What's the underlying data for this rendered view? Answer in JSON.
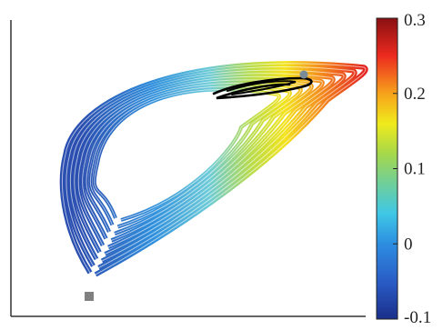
{
  "chart_data": {
    "type": "line",
    "title": "",
    "xlabel": "",
    "ylabel": "",
    "colorbar": {
      "min": -0.1,
      "max": 0.3,
      "colormap": "jet",
      "ticks": [
        {
          "value": 0.3,
          "label": "0.3"
        },
        {
          "value": 0.2,
          "label": "0.2"
        },
        {
          "value": 0.1,
          "label": "0.1"
        },
        {
          "value": 0.0,
          "label": "0"
        },
        {
          "value": -0.1,
          "label": "-0.1"
        }
      ]
    },
    "trajectory": {
      "description_color": "colored by value along the colorbar scale",
      "loops": 9
    },
    "overlay_curve": {
      "color": "#000000"
    },
    "markers": [
      {
        "name": "start",
        "shape": "square",
        "color": "#808080"
      },
      {
        "name": "end",
        "shape": "circle",
        "color": "#7a8c99"
      }
    ],
    "grid": false,
    "axes_visible": [
      "left",
      "bottom"
    ]
  },
  "colors": {
    "axis": "#333333",
    "overlay": "#000000",
    "marker_start": "#808080",
    "marker_end": "#7a8c99"
  }
}
